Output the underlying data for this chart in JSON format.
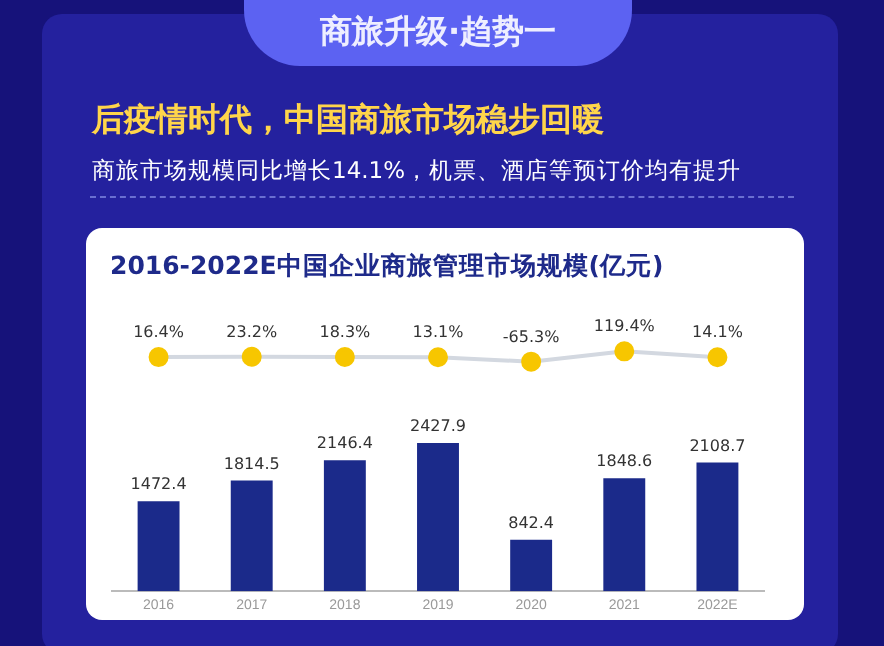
{
  "chart_data": [
    {
      "type": "line",
      "title": "2016-2022E中国企业商旅管理市场规模(亿元)",
      "annotations": [
        "商旅升级·趋势一",
        "后疫情时代，中国商旅市场稳步回暖",
        "商旅市场规模同比增长14.1%，机票、酒店等预订价均有提升"
      ],
      "categories": [
        null,
        null,
        null,
        null,
        null,
        null,
        null
      ],
      "series": [
        {
          "color": "#d3d8e0",
          "values": [
            16.4,
            23.2,
            18.3,
            13.1,
            -65.3,
            119.4,
            14.1
          ],
          "value_labels": [
            "16.4%",
            "23.2%",
            "18.3%",
            "13.1%",
            "-65.3%",
            "119.4%",
            "14.1%"
          ]
        }
      ],
      "marker": "circle",
      "tick_labels": false,
      "legend": false
    },
    {
      "type": "bar",
      "categories": [
        "2016",
        "2017",
        "2018",
        "2019",
        "2020",
        "2021",
        "2022E"
      ],
      "series": [
        {
          "color": "#1b2a8a",
          "values": [
            1472.4,
            1814.5,
            2146.4,
            2427.9,
            842.4,
            1848.6,
            2108.7
          ]
        }
      ],
      "tick_labels": "x",
      "data_labels": true,
      "legend": false
    }
  ]
}
